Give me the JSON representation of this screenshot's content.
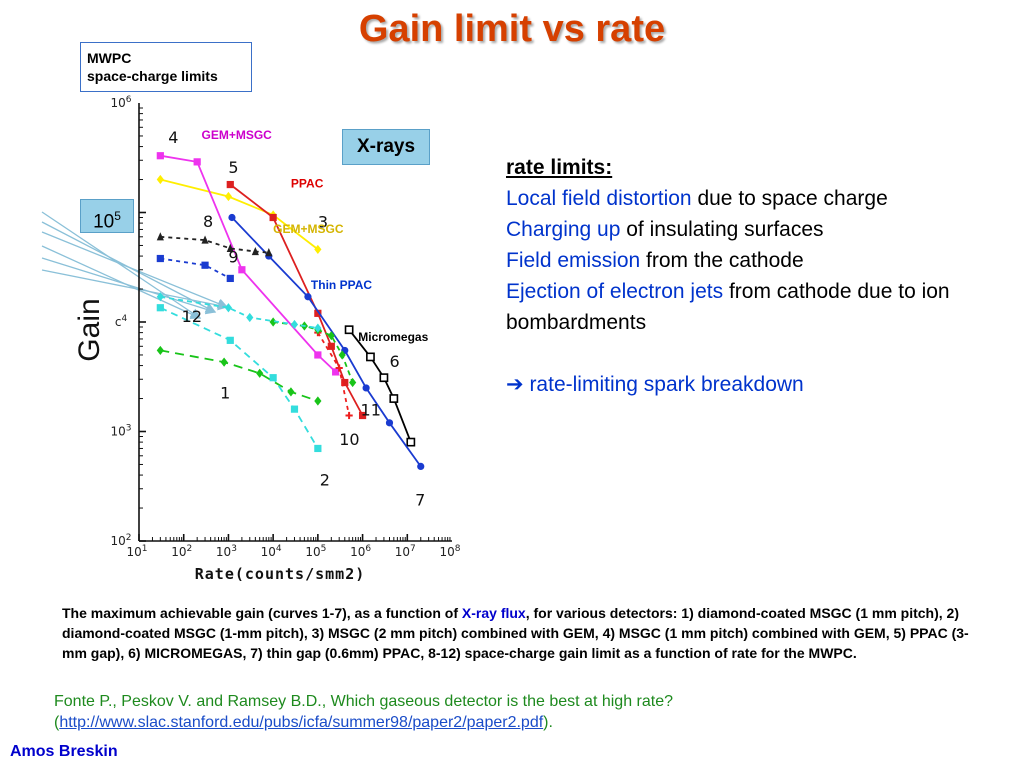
{
  "slide": {
    "title": "Gain limit vs rate",
    "mwpc_line1": "MWPC",
    "mwpc_line2": "space-charge limits",
    "box_105_base": "10",
    "box_105_exp": "5",
    "xrays": "X-rays",
    "author": "Amos Breskin"
  },
  "rate_limits": {
    "heading": "rate limits:",
    "items": [
      {
        "blue": "Local field distortion",
        "black": " due to space charge"
      },
      {
        "blue": "Charging up",
        "black": " of insulating surfaces"
      },
      {
        "blue": "Field emission",
        "black": " from the cathode"
      },
      {
        "blue": "Ejection of electron jets",
        "black": " from cathode due to ion bombardments"
      }
    ],
    "arrow": "➔",
    "breakdown": " rate-limiting spark breakdown"
  },
  "caption": {
    "part1": "The maximum achievable gain (curves 1-7), as a function of ",
    "part_blue": "X-ray flux",
    "part2": ", for various detectors: 1) diamond-coated MSGC (1 mm pitch), 2) diamond-coated MSGC (1-mm pitch), 3) MSGC (2 mm pitch) combined with GEM, 4) MSGC (1 mm pitch) combined with GEM, 5) PPAC (3-mm gap), 6) MICROMEGAS, 7) thin gap (0.6mm) PPAC, 8-12) space-charge gain limit as a function of rate for the MWPC."
  },
  "reference": {
    "text": "Fonte P., Peskov V. and Ramsey B.D., Which gaseous detector is the best at high rate?",
    "open": "(",
    "url": "http://www.slac.stanford.edu/pubs/icfa/summer98/paper2/paper2.pdf",
    "close": ")."
  },
  "chart_data": {
    "type": "line",
    "xlabel": "Rate(counts/smm2)",
    "ylabel": "Gain",
    "x_scale": "log",
    "y_scale": "log",
    "xlim": [
      10,
      100000000
    ],
    "ylim": [
      100,
      1000000
    ],
    "x_ticks": [
      {
        "base": "10",
        "exp": "1",
        "value": 10
      },
      {
        "base": "10",
        "exp": "2",
        "value": 100
      },
      {
        "base": "10",
        "exp": "3",
        "value": 1000
      },
      {
        "base": "10",
        "exp": "4",
        "value": 10000
      },
      {
        "base": "10",
        "exp": "5",
        "value": 100000
      },
      {
        "base": "10",
        "exp": "6",
        "value": 1000000
      },
      {
        "base": "10",
        "exp": "7",
        "value": 10000000
      },
      {
        "base": "10",
        "exp": "8",
        "value": 100000000
      }
    ],
    "y_ticks": [
      {
        "base": "10",
        "exp": "2",
        "value": 100
      },
      {
        "base": "10",
        "exp": "3",
        "value": 1000
      },
      {
        "base": "c",
        "exp": "4",
        "value": 10000
      },
      {
        "base": "10",
        "exp": "6",
        "value": 1000000
      }
    ],
    "labels": [
      {
        "text": "GEM+MSGC",
        "color": "#cc00cc",
        "x": 250,
        "y": 470000
      },
      {
        "text": "PPAC",
        "color": "#dd0000",
        "x": 25000,
        "y": 170000
      },
      {
        "text": "GEM+MSGC",
        "color": "#d4b400",
        "x": 10000,
        "y": 65000
      },
      {
        "text": "Thin PPAC",
        "color": "#0033cc",
        "x": 70000,
        "y": 20000
      },
      {
        "text": "Micromegas",
        "color": "#000000",
        "x": 800000,
        "y": 6700
      }
    ],
    "series": [
      {
        "id": "1",
        "label": "1",
        "label_x": 650,
        "label_y": 2000,
        "color": "#19c419",
        "dash": "9,6",
        "marker": "diamond",
        "x": [
          30,
          800,
          5000,
          25000,
          100000
        ],
        "y": [
          5500,
          4300,
          3400,
          2300,
          1900
        ]
      },
      {
        "id": "2",
        "label": "2",
        "label_x": 110000,
        "label_y": 320,
        "color": "#33dddd",
        "dash": "7,5",
        "marker": "square",
        "x": [
          30,
          1100,
          10000,
          30000,
          100000
        ],
        "y": [
          13500,
          6800,
          3100,
          1600,
          700
        ]
      },
      {
        "id": "3",
        "label": "3",
        "label_x": 100000,
        "label_y": 73000,
        "color": "#ffee00",
        "dash": "",
        "marker": "diamond",
        "x": [
          30,
          1000,
          10000,
          100000
        ],
        "y": [
          200000,
          140000,
          95000,
          46000
        ]
      },
      {
        "id": "4",
        "label": "4",
        "label_x": 45,
        "label_y": 430000,
        "color": "#ee33ee",
        "dash": "",
        "marker": "square",
        "x": [
          30,
          200,
          2000,
          100000,
          250000
        ],
        "y": [
          330000,
          290000,
          30000,
          5000,
          3500
        ]
      },
      {
        "id": "5",
        "label": "5",
        "label_x": 1000,
        "label_y": 230000,
        "color": "#dd2020",
        "dash": "",
        "marker": "square",
        "x": [
          1100,
          10000,
          100000,
          200000,
          400000,
          1000000
        ],
        "y": [
          180000,
          90000,
          12000,
          6000,
          2800,
          1400
        ]
      },
      {
        "id": "6",
        "label": "6",
        "label_x": 4000000,
        "label_y": 3900,
        "color": "#000000",
        "dash": "",
        "marker": "square-open",
        "x": [
          500000,
          1500000,
          3000000,
          5000000,
          12000000
        ],
        "y": [
          8500,
          4800,
          3100,
          2000,
          800
        ]
      },
      {
        "id": "7",
        "label": "7",
        "label_x": 15000000,
        "label_y": 210,
        "color": "#1a3bd0",
        "dash": "",
        "marker": "circle",
        "x": [
          1200,
          8000,
          60000,
          400000,
          1200000,
          4000000,
          20000000
        ],
        "y": [
          90000,
          40000,
          17000,
          5500,
          2500,
          1200,
          480
        ]
      },
      {
        "id": "8",
        "label": "8",
        "label_x": 270,
        "label_y": 74000,
        "color": "#222222",
        "dash": "4,4",
        "marker": "triangle",
        "x": [
          30,
          300,
          1100,
          4000,
          8000
        ],
        "y": [
          60000,
          56000,
          47000,
          44000,
          43000
        ]
      },
      {
        "id": "9",
        "label": "9",
        "label_x": 1000,
        "label_y": 35000,
        "color": "#1a3bd0",
        "dash": "4,4",
        "marker": "square",
        "x": [
          30,
          300,
          1100
        ],
        "y": [
          38000,
          33000,
          25000
        ]
      },
      {
        "id": "10",
        "label": "10",
        "label_x": 300000,
        "label_y": 750,
        "color": "#ee1e1e",
        "dash": "4,4",
        "marker": "plus",
        "x": [
          100000,
          300000,
          500000
        ],
        "y": [
          8000,
          3800,
          1400
        ]
      },
      {
        "id": "11",
        "label": "11",
        "label_x": 900000,
        "label_y": 1400,
        "color": "#19c419",
        "dash": "5,4",
        "marker": "diamond",
        "x": [
          10000,
          50000,
          100000,
          200000,
          350000,
          600000
        ],
        "y": [
          10000,
          9200,
          8500,
          7500,
          5000,
          2800
        ]
      },
      {
        "id": "12",
        "label": "12",
        "label_x": 90,
        "label_y": 10000,
        "color": "#33dddd",
        "dash": "5,4",
        "marker": "diamond",
        "x": [
          30,
          1000,
          3000,
          30000,
          100000
        ],
        "y": [
          17000,
          13500,
          11000,
          9500,
          8800
        ]
      }
    ]
  }
}
